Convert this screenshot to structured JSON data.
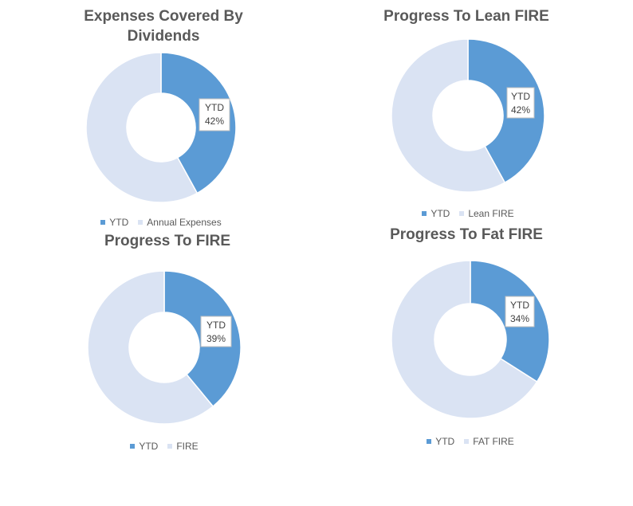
{
  "colors": {
    "ytd": "#5b9bd5",
    "remaining": "#dae3f3"
  },
  "chart_data": [
    {
      "type": "pie",
      "donut": true,
      "title": "Expenses Covered By Dividends",
      "series": [
        {
          "name": "YTD",
          "value": 0.42,
          "label": "42%"
        },
        {
          "name": "Annual Expenses",
          "value": 0.58
        }
      ],
      "legend": "bottom"
    },
    {
      "type": "pie",
      "donut": true,
      "title": "Progress To Lean FIRE",
      "series": [
        {
          "name": "YTD",
          "value": 0.42,
          "label": "42%"
        },
        {
          "name": "Lean FIRE",
          "value": 0.58
        }
      ],
      "legend": "bottom"
    },
    {
      "type": "pie",
      "donut": true,
      "title": "Progress To FIRE",
      "series": [
        {
          "name": "YTD",
          "value": 0.39,
          "label": "39%"
        },
        {
          "name": "FIRE",
          "value": 0.61
        }
      ],
      "legend": "bottom"
    },
    {
      "type": "pie",
      "donut": true,
      "title": "Progress To Fat FIRE",
      "series": [
        {
          "name": "YTD",
          "value": 0.34,
          "label": "34%"
        },
        {
          "name": "FAT FIRE",
          "value": 0.66
        }
      ],
      "legend": "bottom"
    }
  ]
}
